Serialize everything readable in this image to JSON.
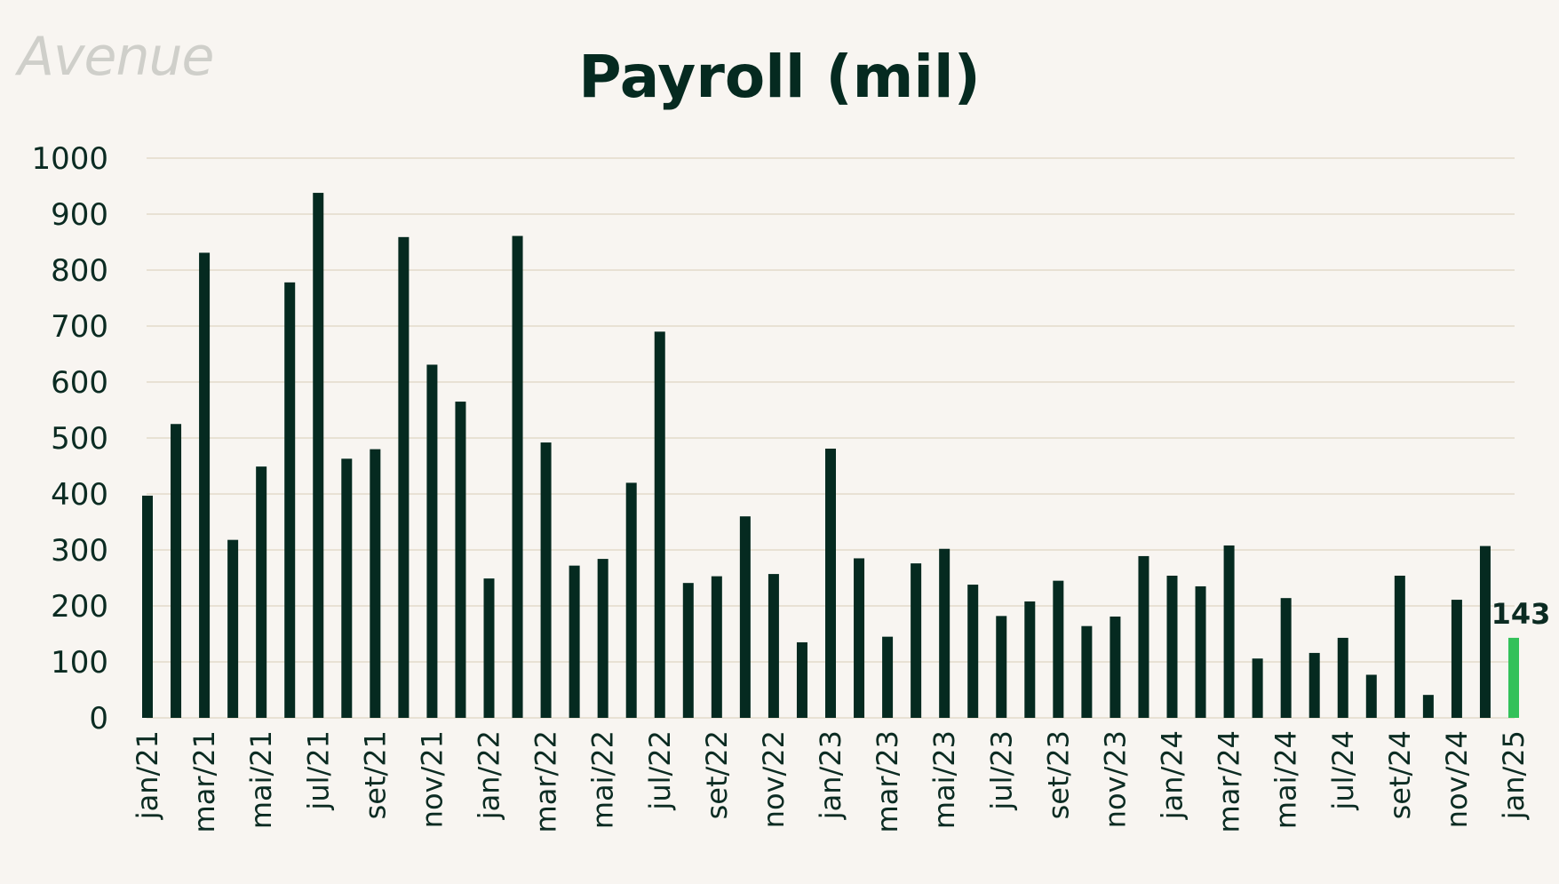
{
  "logo_text": "AVENUE",
  "colors": {
    "background": "#f8f5f1",
    "bar": "#052a20",
    "highlight": "#33c15a",
    "grid": "#e8e1d4",
    "text": "#052a20"
  },
  "chart_data": {
    "type": "bar",
    "title": "Payroll (mil)",
    "xlabel": "",
    "ylabel": "",
    "ylim": [
      0,
      1000
    ],
    "yticks": [
      0,
      100,
      200,
      300,
      400,
      500,
      600,
      700,
      800,
      900,
      1000
    ],
    "grid": true,
    "categories": [
      "jan/21",
      "fev/21",
      "mar/21",
      "abr/21",
      "mai/21",
      "jun/21",
      "jul/21",
      "ago/21",
      "set/21",
      "out/21",
      "nov/21",
      "dez/21",
      "jan/22",
      "fev/22",
      "mar/22",
      "abr/22",
      "mai/22",
      "jun/22",
      "jul/22",
      "ago/22",
      "set/22",
      "out/22",
      "nov/22",
      "dez/22",
      "jan/23",
      "fev/23",
      "mar/23",
      "abr/23",
      "mai/23",
      "jun/23",
      "jul/23",
      "ago/23",
      "set/23",
      "out/23",
      "nov/23",
      "dez/23",
      "jan/24",
      "fev/24",
      "mar/24",
      "abr/24",
      "mai/24",
      "jun/24",
      "jul/24",
      "ago/24",
      "set/24",
      "out/24",
      "nov/24",
      "dez/24",
      "jan/25"
    ],
    "tick_labels": [
      "jan/21",
      "mar/21",
      "mai/21",
      "jul/21",
      "set/21",
      "nov/21",
      "jan/22",
      "mar/22",
      "mai/22",
      "jul/22",
      "set/22",
      "nov/22",
      "jan/23",
      "mar/23",
      "mai/23",
      "jul/23",
      "set/23",
      "nov/23",
      "jan/24",
      "mar/24",
      "mai/24",
      "jul/24",
      "set/24",
      "nov/24",
      "jan/25"
    ],
    "values": [
      397,
      525,
      831,
      318,
      449,
      778,
      938,
      463,
      480,
      859,
      631,
      565,
      249,
      861,
      492,
      272,
      284,
      420,
      690,
      241,
      253,
      360,
      257,
      135,
      481,
      285,
      145,
      276,
      302,
      238,
      182,
      208,
      245,
      164,
      181,
      289,
      254,
      235,
      308,
      106,
      214,
      116,
      143,
      77,
      254,
      41,
      211,
      307,
      143
    ],
    "highlight_index": 48,
    "data_label": "143"
  }
}
